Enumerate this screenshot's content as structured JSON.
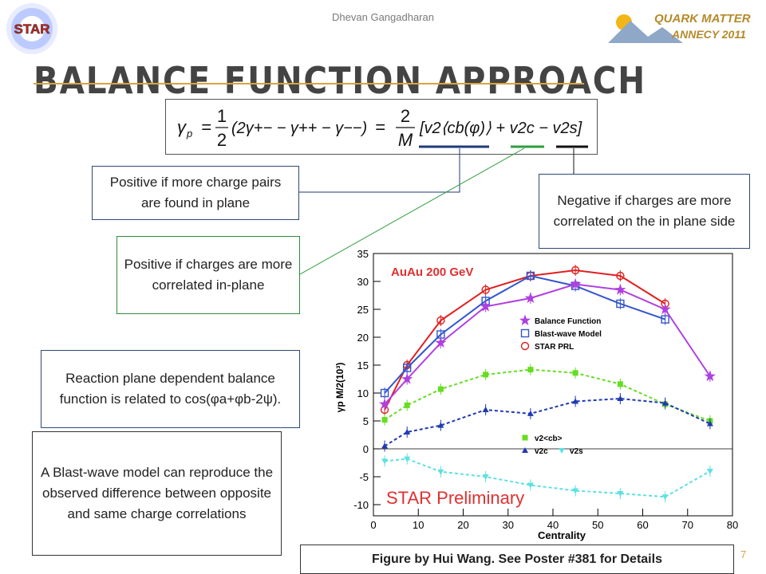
{
  "header": {
    "author": "Dhevan Gangadharan",
    "title": "BALANCE FUNCTION APPROACH",
    "logo_left": "STAR",
    "logo_right_line1": "QUARK MATTER",
    "logo_right_line2": "ANNECY 2011",
    "accent_color": "#d9a441"
  },
  "formula": {
    "lhs": "γ",
    "lhs_sub": "p",
    "eq1_num": "1",
    "eq1_den": "2",
    "mid": "(2γ+− − γ++ − γ−−)",
    "eq2_num": "2",
    "eq2_den": "M",
    "rhs": "[v2⟨cb(φ)⟩ + v2c − v2s]",
    "underline_colors": [
      "#1f3a78",
      "#2e9e3e",
      "#111111"
    ]
  },
  "callouts": {
    "positive_pairs": "Positive if more charge pairs are found in plane",
    "negative_inplane": "Negative if charges are more correlated on the in plane side",
    "positive_inplane": "Positive if charges are more correlated in-plane",
    "reaction_plane": "Reaction plane dependent balance function is related to cos(φa+φb-2ψ).",
    "blast_wave": "A Blast-wave model can reproduce the observed difference between opposite and same charge correlations"
  },
  "footer": {
    "credit": "Figure by Hui Wang.  See Poster #381 for Details",
    "page": "7"
  },
  "chart_data": {
    "type": "line",
    "annotation": "AuAu 200 GeV",
    "watermark": "STAR Preliminary",
    "xlabel": "Centrality",
    "ylabel": "γp M/2(10³)",
    "xlim": [
      0,
      80
    ],
    "ylim": [
      -12,
      35
    ],
    "xticks": [
      0,
      10,
      20,
      30,
      40,
      50,
      60,
      70,
      80
    ],
    "yticks": [
      -10,
      -5,
      0,
      5,
      10,
      15,
      20,
      25,
      30,
      35
    ],
    "x": [
      2.5,
      7.5,
      15,
      25,
      35,
      45,
      55,
      65,
      75
    ],
    "legend_upper": [
      "Balance Function",
      "Blast-wave Model",
      "STAR PRL"
    ],
    "legend_lower": [
      "v2<cb>",
      "v2c",
      "v2s"
    ],
    "series": [
      {
        "name": "STAR PRL",
        "color": "#e02020",
        "marker": "circle",
        "dashed": false,
        "x": [
          2.5,
          7.5,
          15,
          25,
          35,
          45,
          55,
          65
        ],
        "values": [
          7,
          15,
          23,
          28.5,
          31,
          32,
          31,
          26
        ]
      },
      {
        "name": "Blast-wave Model",
        "color": "#3355cc",
        "marker": "square",
        "dashed": false,
        "x": [
          2.5,
          7.5,
          15,
          25,
          35,
          45,
          55,
          65
        ],
        "values": [
          10,
          14.5,
          20.5,
          26.5,
          31,
          29.2,
          26,
          23.2
        ]
      },
      {
        "name": "Balance Function",
        "color": "#b040e0",
        "marker": "star",
        "dashed": false,
        "x": [
          2.5,
          7.5,
          15,
          25,
          35,
          45,
          55,
          65,
          75
        ],
        "values": [
          8,
          12.5,
          19,
          25.5,
          27,
          29.5,
          28.5,
          25,
          13
        ]
      },
      {
        "name": "v2<cb>",
        "color": "#66dd22",
        "marker": "square-filled",
        "dashed": true,
        "x": [
          2.5,
          7.5,
          15,
          25,
          35,
          45,
          55,
          65,
          75
        ],
        "values": [
          5.2,
          7.8,
          10.7,
          13.3,
          14.2,
          13.6,
          11.6,
          8,
          5
        ]
      },
      {
        "name": "v2c",
        "color": "#1f3ab0",
        "marker": "triangle",
        "dashed": true,
        "x": [
          2.5,
          7.5,
          15,
          25,
          35,
          45,
          55,
          65,
          75
        ],
        "values": [
          0.5,
          3,
          4.2,
          7,
          6.3,
          8.5,
          9,
          8.2,
          4.5
        ]
      },
      {
        "name": "v2s",
        "color": "#5ee0e0",
        "marker": "triangle-down",
        "dashed": true,
        "x": [
          2.5,
          7.5,
          15,
          25,
          35,
          45,
          55,
          65,
          75
        ],
        "values": [
          -2.2,
          -1.8,
          -4.1,
          -5,
          -6.5,
          -7.5,
          -8,
          -8.6,
          -4
        ]
      }
    ]
  }
}
